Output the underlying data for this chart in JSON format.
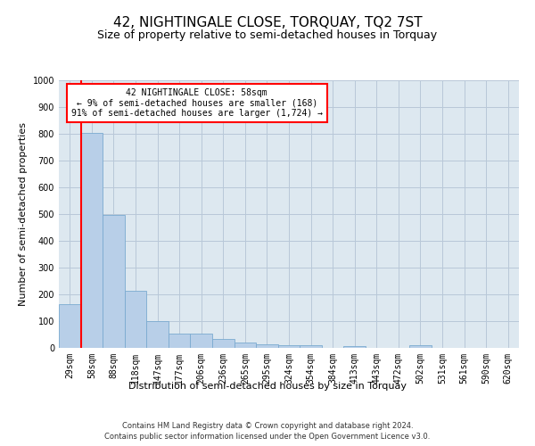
{
  "title": "42, NIGHTINGALE CLOSE, TORQUAY, TQ2 7ST",
  "subtitle": "Size of property relative to semi-detached houses in Torquay",
  "xlabel": "Distribution of semi-detached houses by size in Torquay",
  "ylabel": "Number of semi-detached properties",
  "footer_line1": "Contains HM Land Registry data © Crown copyright and database right 2024.",
  "footer_line2": "Contains public sector information licensed under the Open Government Licence v3.0.",
  "annotation_line1": "42 NIGHTINGALE CLOSE: 58sqm",
  "annotation_line2": "← 9% of semi-detached houses are smaller (168)",
  "annotation_line3": "91% of semi-detached houses are larger (1,724) →",
  "categories": [
    "29sqm",
    "58sqm",
    "88sqm",
    "118sqm",
    "147sqm",
    "177sqm",
    "206sqm",
    "236sqm",
    "265sqm",
    "295sqm",
    "324sqm",
    "354sqm",
    "384sqm",
    "413sqm",
    "443sqm",
    "472sqm",
    "502sqm",
    "531sqm",
    "561sqm",
    "590sqm",
    "620sqm"
  ],
  "values": [
    163,
    803,
    497,
    215,
    100,
    55,
    53,
    35,
    20,
    13,
    11,
    9,
    0,
    8,
    0,
    0,
    9,
    0,
    0,
    0,
    0
  ],
  "bar_color": "#b8cfe8",
  "bar_edge_color": "#7aaad0",
  "red_line_index": 1,
  "ylim": [
    0,
    1000
  ],
  "yticks": [
    0,
    100,
    200,
    300,
    400,
    500,
    600,
    700,
    800,
    900,
    1000
  ],
  "background_color": "#ffffff",
  "plot_bg_color": "#dde8f0",
  "grid_color": "#b8c8d8",
  "title_fontsize": 11,
  "subtitle_fontsize": 9,
  "axis_label_fontsize": 8,
  "tick_fontsize": 7,
  "annotation_fontsize": 7,
  "footer_fontsize": 6
}
